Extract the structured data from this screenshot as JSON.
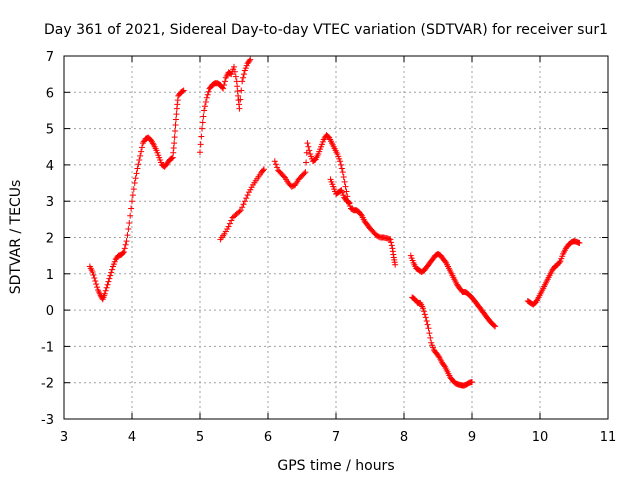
{
  "chart_data": {
    "type": "scatter",
    "title": "Day 361 of 2021, Sidereal Day-to-day VTEC variation (SDTVAR) for receiver sur1",
    "xlabel": "GPS time / hours",
    "ylabel": "SDTVAR / TECUs",
    "xlim": [
      3,
      11
    ],
    "ylim": [
      -3,
      7
    ],
    "xticks": [
      "3",
      "4",
      "5",
      "6",
      "7",
      "8",
      "9",
      "10",
      "11"
    ],
    "yticks": [
      "-3",
      "-2",
      "-1",
      "0",
      "1",
      "2",
      "3",
      "4",
      "5",
      "6",
      "7"
    ],
    "grid": true,
    "marker": "+",
    "color": "#ff0000",
    "segments": [
      [
        [
          3.38,
          1.2
        ],
        [
          3.42,
          1.05
        ],
        [
          3.46,
          0.8
        ],
        [
          3.5,
          0.55
        ],
        [
          3.54,
          0.4
        ],
        [
          3.57,
          0.3
        ],
        [
          3.6,
          0.45
        ],
        [
          3.64,
          0.7
        ],
        [
          3.68,
          0.95
        ],
        [
          3.72,
          1.2
        ],
        [
          3.76,
          1.4
        ],
        [
          3.8,
          1.5
        ],
        [
          3.84,
          1.52
        ],
        [
          3.88,
          1.6
        ],
        [
          3.92,
          1.9
        ],
        [
          3.96,
          2.4
        ],
        [
          4.0,
          3.0
        ],
        [
          4.04,
          3.5
        ],
        [
          4.08,
          3.9
        ],
        [
          4.12,
          4.25
        ],
        [
          4.16,
          4.6
        ],
        [
          4.2,
          4.72
        ],
        [
          4.24,
          4.75
        ],
        [
          4.28,
          4.68
        ],
        [
          4.32,
          4.55
        ],
        [
          4.36,
          4.4
        ],
        [
          4.4,
          4.2
        ],
        [
          4.44,
          4.0
        ],
        [
          4.48,
          3.95
        ],
        [
          4.52,
          4.05
        ],
        [
          4.56,
          4.15
        ],
        [
          4.6,
          4.2
        ],
        [
          4.62,
          4.6
        ],
        [
          4.64,
          5.1
        ],
        [
          4.66,
          5.55
        ],
        [
          4.68,
          5.9
        ],
        [
          4.72,
          6.0
        ],
        [
          4.76,
          6.05
        ]
      ],
      [
        [
          5.0,
          4.35
        ],
        [
          5.03,
          5.0
        ],
        [
          5.06,
          5.5
        ],
        [
          5.1,
          5.85
        ],
        [
          5.14,
          6.1
        ],
        [
          5.18,
          6.2
        ],
        [
          5.22,
          6.25
        ],
        [
          5.26,
          6.25
        ],
        [
          5.3,
          6.2
        ],
        [
          5.34,
          6.1
        ],
        [
          5.38,
          6.4
        ],
        [
          5.42,
          6.55
        ],
        [
          5.46,
          6.5
        ],
        [
          5.5,
          6.7
        ],
        [
          5.54,
          6.3
        ],
        [
          5.56,
          5.9
        ],
        [
          5.58,
          5.55
        ],
        [
          5.62,
          6.3
        ],
        [
          5.66,
          6.6
        ],
        [
          5.7,
          6.8
        ],
        [
          5.74,
          6.9
        ]
      ],
      [
        [
          5.3,
          1.95
        ],
        [
          5.36,
          2.1
        ],
        [
          5.42,
          2.3
        ],
        [
          5.48,
          2.55
        ],
        [
          5.54,
          2.65
        ],
        [
          5.6,
          2.75
        ],
        [
          5.66,
          3.0
        ],
        [
          5.72,
          3.25
        ],
        [
          5.78,
          3.45
        ],
        [
          5.84,
          3.62
        ],
        [
          5.9,
          3.78
        ],
        [
          5.94,
          3.88
        ]
      ],
      [
        [
          6.1,
          4.1
        ],
        [
          6.15,
          3.85
        ],
        [
          6.2,
          3.75
        ],
        [
          6.25,
          3.65
        ],
        [
          6.3,
          3.5
        ],
        [
          6.35,
          3.4
        ],
        [
          6.4,
          3.45
        ],
        [
          6.45,
          3.6
        ],
        [
          6.5,
          3.7
        ],
        [
          6.55,
          3.8
        ],
        [
          6.58,
          4.6
        ],
        [
          6.62,
          4.3
        ],
        [
          6.66,
          4.1
        ],
        [
          6.7,
          4.15
        ],
        [
          6.74,
          4.3
        ],
        [
          6.78,
          4.5
        ],
        [
          6.82,
          4.7
        ],
        [
          6.86,
          4.82
        ],
        [
          6.9,
          4.75
        ],
        [
          6.94,
          4.6
        ],
        [
          6.98,
          4.45
        ],
        [
          7.02,
          4.3
        ],
        [
          7.06,
          4.1
        ],
        [
          7.1,
          3.8
        ],
        [
          7.14,
          3.4
        ],
        [
          7.18,
          3.0
        ],
        [
          7.22,
          2.8
        ],
        [
          7.26,
          2.75
        ],
        [
          7.3,
          2.75
        ],
        [
          7.34,
          2.7
        ],
        [
          7.38,
          2.6
        ],
        [
          7.42,
          2.45
        ],
        [
          7.46,
          2.35
        ],
        [
          7.5,
          2.25
        ],
        [
          7.55,
          2.15
        ],
        [
          7.6,
          2.05
        ],
        [
          7.65,
          2.0
        ],
        [
          7.7,
          2.0
        ],
        [
          7.75,
          1.98
        ],
        [
          7.8,
          1.95
        ],
        [
          7.83,
          1.7
        ],
        [
          7.85,
          1.45
        ],
        [
          7.87,
          1.25
        ]
      ],
      [
        [
          6.92,
          3.6
        ],
        [
          6.96,
          3.4
        ],
        [
          7.0,
          3.2
        ],
        [
          7.04,
          3.25
        ],
        [
          7.08,
          3.3
        ],
        [
          7.12,
          3.1
        ],
        [
          7.16,
          3.0
        ],
        [
          7.2,
          2.95
        ]
      ],
      [
        [
          8.1,
          1.5
        ],
        [
          8.14,
          1.3
        ],
        [
          8.18,
          1.15
        ],
        [
          8.22,
          1.1
        ],
        [
          8.26,
          1.05
        ],
        [
          8.3,
          1.1
        ],
        [
          8.34,
          1.2
        ],
        [
          8.38,
          1.3
        ],
        [
          8.42,
          1.4
        ],
        [
          8.46,
          1.5
        ],
        [
          8.5,
          1.55
        ],
        [
          8.54,
          1.5
        ],
        [
          8.58,
          1.4
        ],
        [
          8.62,
          1.3
        ],
        [
          8.66,
          1.15
        ],
        [
          8.7,
          1.0
        ],
        [
          8.74,
          0.85
        ],
        [
          8.78,
          0.7
        ],
        [
          8.82,
          0.6
        ],
        [
          8.86,
          0.5
        ],
        [
          8.9,
          0.5
        ],
        [
          8.94,
          0.45
        ],
        [
          8.98,
          0.38
        ],
        [
          9.02,
          0.3
        ],
        [
          9.06,
          0.2
        ],
        [
          9.1,
          0.1
        ],
        [
          9.14,
          0.0
        ],
        [
          9.18,
          -0.1
        ],
        [
          9.22,
          -0.2
        ],
        [
          9.26,
          -0.3
        ],
        [
          9.3,
          -0.38
        ],
        [
          9.34,
          -0.45
        ]
      ],
      [
        [
          8.12,
          0.35
        ],
        [
          8.16,
          0.3
        ],
        [
          8.2,
          0.2
        ],
        [
          8.24,
          0.2
        ],
        [
          8.28,
          0.05
        ],
        [
          8.32,
          -0.2
        ],
        [
          8.36,
          -0.5
        ],
        [
          8.4,
          -0.9
        ],
        [
          8.44,
          -1.1
        ],
        [
          8.48,
          -1.2
        ],
        [
          8.52,
          -1.3
        ],
        [
          8.56,
          -1.45
        ],
        [
          8.6,
          -1.55
        ],
        [
          8.64,
          -1.7
        ],
        [
          8.68,
          -1.85
        ],
        [
          8.72,
          -1.95
        ],
        [
          8.76,
          -2.02
        ],
        [
          8.8,
          -2.05
        ],
        [
          8.84,
          -2.07
        ],
        [
          8.88,
          -2.08
        ],
        [
          8.92,
          -2.05
        ],
        [
          8.96,
          -2.0
        ],
        [
          9.0,
          -1.98
        ]
      ],
      [
        [
          9.82,
          0.25
        ],
        [
          9.86,
          0.2
        ],
        [
          9.9,
          0.15
        ],
        [
          9.94,
          0.22
        ],
        [
          9.98,
          0.35
        ],
        [
          10.02,
          0.5
        ],
        [
          10.06,
          0.65
        ],
        [
          10.1,
          0.8
        ],
        [
          10.14,
          0.95
        ],
        [
          10.18,
          1.1
        ],
        [
          10.22,
          1.2
        ],
        [
          10.26,
          1.25
        ],
        [
          10.3,
          1.35
        ],
        [
          10.34,
          1.55
        ],
        [
          10.38,
          1.7
        ],
        [
          10.42,
          1.8
        ],
        [
          10.46,
          1.87
        ],
        [
          10.5,
          1.9
        ],
        [
          10.54,
          1.88
        ],
        [
          10.58,
          1.85
        ]
      ]
    ]
  }
}
